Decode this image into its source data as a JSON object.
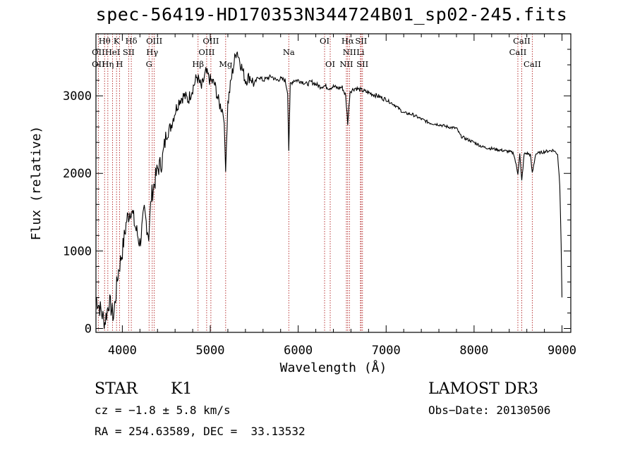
{
  "chart_data": {
    "type": "line",
    "title": "spec-56419-HD170353N344724B01_sp02-245.fits",
    "xlabel": "Wavelength (Å)",
    "ylabel": "Flux (relative)",
    "xlim": [
      3700,
      9100
    ],
    "ylim": [
      -50,
      3800
    ],
    "xticks": [
      4000,
      5000,
      6000,
      7000,
      8000,
      9000
    ],
    "yticks": [
      0,
      1000,
      2000,
      3000
    ],
    "x": [
      3700,
      3750,
      3800,
      3850,
      3900,
      3950,
      4000,
      4050,
      4100,
      4150,
      4200,
      4250,
      4300,
      4330,
      4400,
      4450,
      4500,
      4550,
      4600,
      4650,
      4700,
      4750,
      4800,
      4850,
      4900,
      4950,
      5000,
      5050,
      5100,
      5150,
      5175,
      5200,
      5250,
      5300,
      5350,
      5400,
      5450,
      5500,
      5550,
      5600,
      5650,
      5700,
      5750,
      5800,
      5850,
      5880,
      5893,
      5910,
      5950,
      6000,
      6050,
      6100,
      6150,
      6200,
      6250,
      6300,
      6350,
      6400,
      6450,
      6500,
      6540,
      6563,
      6590,
      6650,
      6700,
      6800,
      6900,
      7000,
      7100,
      7200,
      7300,
      7400,
      7500,
      7600,
      7700,
      7800,
      7850,
      7900,
      8000,
      8100,
      8200,
      8300,
      8400,
      8450,
      8498,
      8520,
      8542,
      8570,
      8600,
      8640,
      8662,
      8700,
      8800,
      8900,
      8950,
      8975,
      8990,
      9000
    ],
    "y": [
      400,
      250,
      80,
      350,
      150,
      700,
      1000,
      1400,
      1550,
      1300,
      1100,
      1500,
      1200,
      1700,
      2050,
      2150,
      2500,
      2600,
      2800,
      2950,
      3000,
      2950,
      3100,
      3250,
      3100,
      3300,
      3200,
      3150,
      2900,
      2800,
      2100,
      2900,
      3300,
      3600,
      3400,
      3200,
      3250,
      3150,
      3250,
      3200,
      3230,
      3250,
      3200,
      3220,
      3200,
      3050,
      2300,
      3150,
      3200,
      3200,
      3180,
      3150,
      3180,
      3150,
      3120,
      3130,
      3100,
      3120,
      3100,
      3110,
      3000,
      2650,
      3060,
      3100,
      3080,
      3040,
      3000,
      2950,
      2880,
      2780,
      2760,
      2700,
      2650,
      2630,
      2600,
      2580,
      2480,
      2450,
      2400,
      2340,
      2320,
      2300,
      2280,
      2260,
      2000,
      2250,
      1900,
      2250,
      2260,
      2240,
      2000,
      2250,
      2280,
      2300,
      2250,
      1850,
      1100,
      400
    ],
    "lines_top": [
      {
        "label": "Hθ",
        "x": 3798,
        "row": 0
      },
      {
        "label": "K",
        "x": 3934,
        "row": 0
      },
      {
        "label": "Hδ",
        "x": 4102,
        "row": 0
      },
      {
        "label": "OIII",
        "x": 4363,
        "row": 0
      },
      {
        "label": "OIII",
        "x": 5007,
        "row": 0
      },
      {
        "label": "OI",
        "x": 6300,
        "row": 0
      },
      {
        "label": "Hα",
        "x": 6563,
        "row": 0
      },
      {
        "label": "SII",
        "x": 6716,
        "row": 0
      },
      {
        "label": "CaII",
        "x": 8542,
        "row": 0
      },
      {
        "label": "OII",
        "x": 3727,
        "row": 1
      },
      {
        "label": "HeI",
        "x": 3889,
        "row": 1
      },
      {
        "label": "SII",
        "x": 4072,
        "row": 1
      },
      {
        "label": "Hγ",
        "x": 4340,
        "row": 1
      },
      {
        "label": "OIII",
        "x": 4959,
        "row": 1
      },
      {
        "label": "Na",
        "x": 5893,
        "row": 1
      },
      {
        "label": "NII",
        "x": 6583,
        "row": 1
      },
      {
        "label": "Li",
        "x": 6708,
        "row": 1
      },
      {
        "label": "CaII",
        "x": 8498,
        "row": 1
      },
      {
        "label": "OII",
        "x": 3727,
        "row": 2
      },
      {
        "label": "Hη",
        "x": 3835,
        "row": 2
      },
      {
        "label": "H",
        "x": 3968,
        "row": 2
      },
      {
        "label": "G",
        "x": 4304,
        "row": 2
      },
      {
        "label": "Hβ",
        "x": 4861,
        "row": 2
      },
      {
        "label": "Mg",
        "x": 5175,
        "row": 2
      },
      {
        "label": "OI",
        "x": 6364,
        "row": 2
      },
      {
        "label": "NII",
        "x": 6548,
        "row": 2
      },
      {
        "label": "SII",
        "x": 6731,
        "row": 2
      },
      {
        "label": "CaII",
        "x": 8662,
        "row": 2
      }
    ],
    "line_color": "#000000",
    "marker_color": "#b22222",
    "grid": false
  },
  "info": {
    "object_class": "STAR",
    "subclass": "K1",
    "survey": "LAMOST DR3",
    "cz": "cz = −1.8 ± 5.8 km/s",
    "obs_date": "Obs−Date: 20130506",
    "coords": "RA = 254.63589, DEC =  33.13532"
  }
}
